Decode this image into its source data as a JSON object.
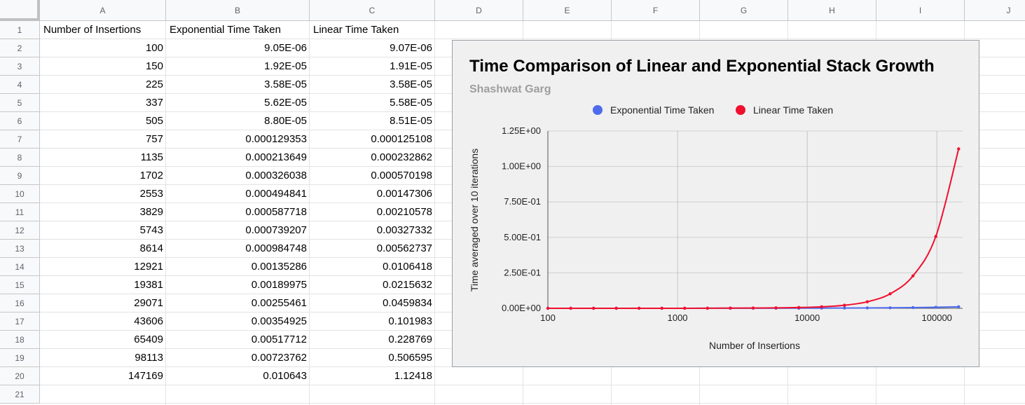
{
  "columns": [
    "A",
    "B",
    "C",
    "D",
    "E",
    "F",
    "G",
    "H",
    "I",
    "J"
  ],
  "rows": [
    "1",
    "2",
    "3",
    "4",
    "5",
    "6",
    "7",
    "8",
    "9",
    "10",
    "11",
    "12",
    "13",
    "14",
    "15",
    "16",
    "17",
    "18",
    "19",
    "20",
    "21"
  ],
  "headers": [
    "Number of Insertions",
    "Exponential Time Taken",
    "Linear Time Taken"
  ],
  "table": [
    [
      "100",
      "9.05E-06",
      "9.07E-06"
    ],
    [
      "150",
      "1.92E-05",
      "1.91E-05"
    ],
    [
      "225",
      "3.58E-05",
      "3.58E-05"
    ],
    [
      "337",
      "5.62E-05",
      "5.58E-05"
    ],
    [
      "505",
      "8.80E-05",
      "8.51E-05"
    ],
    [
      "757",
      "0.000129353",
      "0.000125108"
    ],
    [
      "1135",
      "0.000213649",
      "0.000232862"
    ],
    [
      "1702",
      "0.000326038",
      "0.000570198"
    ],
    [
      "2553",
      "0.000494841",
      "0.00147306"
    ],
    [
      "3829",
      "0.000587718",
      "0.00210578"
    ],
    [
      "5743",
      "0.000739207",
      "0.00327332"
    ],
    [
      "8614",
      "0.000984748",
      "0.00562737"
    ],
    [
      "12921",
      "0.00135286",
      "0.0106418"
    ],
    [
      "19381",
      "0.00189975",
      "0.0215632"
    ],
    [
      "29071",
      "0.00255461",
      "0.0459834"
    ],
    [
      "43606",
      "0.00354925",
      "0.101983"
    ],
    [
      "65409",
      "0.00517712",
      "0.228769"
    ],
    [
      "98113",
      "0.00723762",
      "0.506595"
    ],
    [
      "147169",
      "0.010643",
      "1.12418"
    ]
  ],
  "chart_data": {
    "type": "line",
    "title": "Time Comparison of Linear and Exponential Stack Growth",
    "subtitle": "Shashwat Garg",
    "xlabel": "Number of Insertions",
    "ylabel": "Time averaged over 10 iterations",
    "x_scale": "log",
    "xlim": [
      100,
      158000
    ],
    "ylim": [
      0,
      1.25
    ],
    "x_ticks": [
      100,
      1000,
      10000,
      100000
    ],
    "x_tick_labels": [
      "100",
      "1000",
      "10000",
      "100000"
    ],
    "y_ticks": [
      0,
      0.25,
      0.5,
      0.75,
      1.0,
      1.25
    ],
    "y_tick_labels": [
      "0.00E+00",
      "2.50E-01",
      "5.00E-01",
      "7.50E-01",
      "1.00E+00",
      "1.25E+00"
    ],
    "legend_position": "top",
    "grid": true,
    "x": [
      100,
      150,
      225,
      337,
      505,
      757,
      1135,
      1702,
      2553,
      3829,
      5743,
      8614,
      12921,
      19381,
      29071,
      43606,
      65409,
      98113,
      147169
    ],
    "series": [
      {
        "name": "Exponential Time Taken",
        "color": "#4f6bed",
        "values": [
          9.05e-06,
          1.92e-05,
          3.58e-05,
          5.62e-05,
          8.8e-05,
          0.000129353,
          0.000213649,
          0.000326038,
          0.000494841,
          0.000587718,
          0.000739207,
          0.000984748,
          0.00135286,
          0.00189975,
          0.00255461,
          0.00354925,
          0.00517712,
          0.00723762,
          0.010643
        ]
      },
      {
        "name": "Linear Time Taken",
        "color": "#f0102e",
        "values": [
          9.07e-06,
          1.91e-05,
          3.58e-05,
          5.58e-05,
          8.51e-05,
          0.000125108,
          0.000232862,
          0.000570198,
          0.00147306,
          0.00210578,
          0.00327332,
          0.00562737,
          0.0106418,
          0.0215632,
          0.0459834,
          0.101983,
          0.228769,
          0.506595,
          1.12418
        ]
      }
    ]
  }
}
